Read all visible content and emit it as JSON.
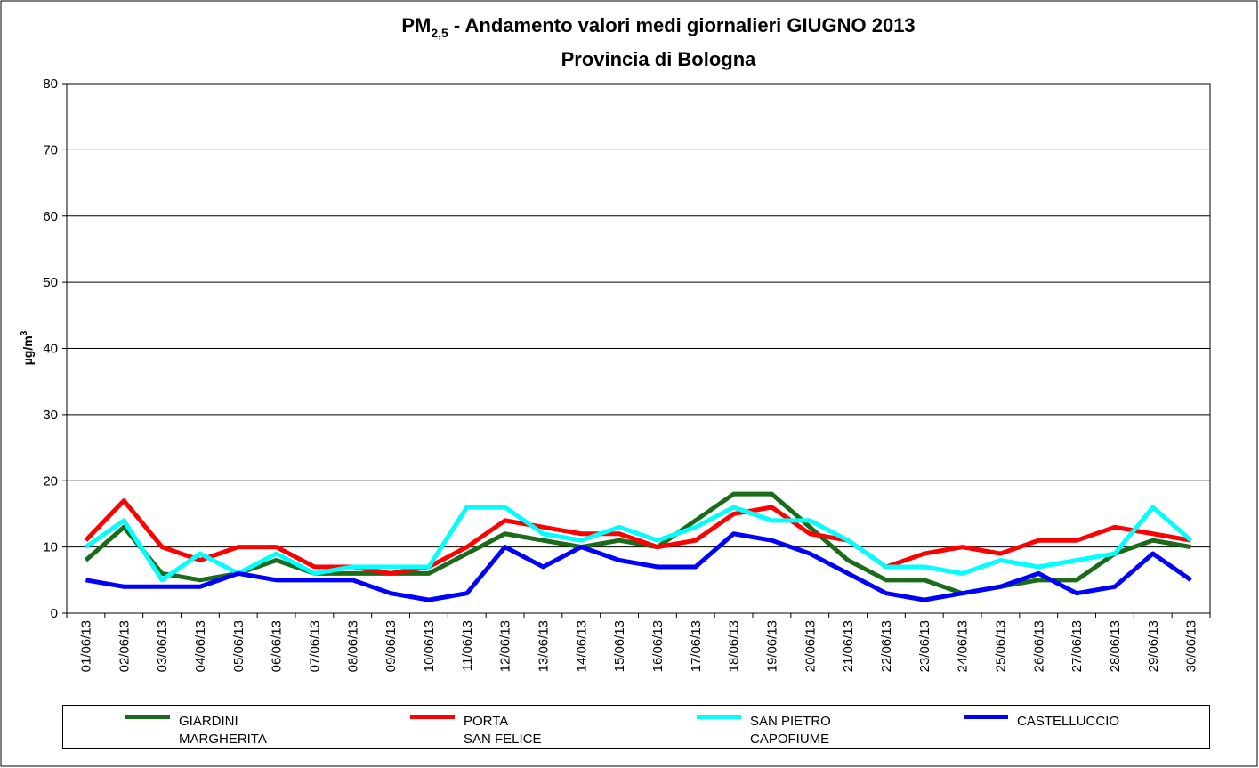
{
  "chart_data": {
    "type": "line",
    "title_parts": [
      "PM",
      "2,5",
      " - Andamento valori medi giornalieri GIUGNO 2013"
    ],
    "subtitle": "Provincia di Bologna",
    "ylabel_parts": [
      "µg/m",
      "3"
    ],
    "categories": [
      "01/06/13",
      "02/06/13",
      "03/06/13",
      "04/06/13",
      "05/06/13",
      "06/06/13",
      "07/06/13",
      "08/06/13",
      "09/06/13",
      "10/06/13",
      "11/06/13",
      "12/06/13",
      "13/06/13",
      "14/06/13",
      "15/06/13",
      "16/06/13",
      "17/06/13",
      "18/06/13",
      "19/06/13",
      "20/06/13",
      "21/06/13",
      "22/06/13",
      "23/06/13",
      "24/06/13",
      "25/06/13",
      "26/06/13",
      "27/06/13",
      "28/06/13",
      "29/06/13",
      "30/06/13"
    ],
    "series": [
      {
        "name": "GIARDINI\nMARGHERITA",
        "color": "#1a6b1a",
        "values": [
          8,
          13,
          6,
          5,
          6,
          8,
          6,
          6,
          6,
          6,
          9,
          12,
          11,
          10,
          11,
          10,
          14,
          18,
          18,
          13,
          8,
          5,
          5,
          3,
          4,
          5,
          5,
          9,
          11,
          10
        ]
      },
      {
        "name": "PORTA\nSAN FELICE",
        "color": "#ff0000",
        "values": [
          11,
          17,
          10,
          8,
          10,
          10,
          7,
          7,
          6,
          7,
          10,
          14,
          13,
          12,
          12,
          10,
          11,
          15,
          16,
          12,
          11,
          7,
          9,
          10,
          9,
          11,
          11,
          13,
          12,
          11
        ]
      },
      {
        "name": "SAN PIETRO\nCAPOFIUME",
        "color": "#00ffff",
        "values": [
          10,
          14,
          5,
          9,
          6,
          9,
          6,
          7,
          7,
          7,
          16,
          16,
          12,
          11,
          13,
          11,
          13,
          16,
          14,
          14,
          11,
          7,
          7,
          6,
          8,
          7,
          8,
          9,
          16,
          11
        ]
      },
      {
        "name": "CASTELLUCCIO",
        "color": "#0000ff",
        "values": [
          5,
          4,
          4,
          4,
          6,
          5,
          5,
          5,
          3,
          2,
          3,
          10,
          7,
          10,
          8,
          7,
          7,
          12,
          11,
          9,
          6,
          3,
          2,
          3,
          4,
          6,
          3,
          4,
          9,
          5
        ]
      }
    ],
    "ylim": [
      0,
      80
    ],
    "yticks": [
      0,
      10,
      20,
      30,
      40,
      50,
      60,
      70,
      80
    ],
    "grid": true,
    "legend": "bottom"
  }
}
